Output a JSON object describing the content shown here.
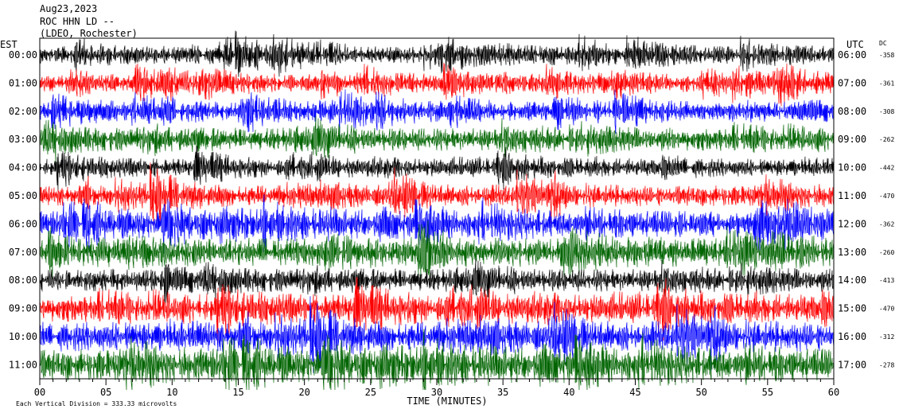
{
  "header": {
    "date": "Aug23,2023",
    "station": "ROC HHN LD --",
    "network": "(LDEO, Rochester)"
  },
  "chart_data": {
    "type": "line",
    "title": "",
    "xlabel": "TIME (MINUTES)",
    "ylabel_left": "EST",
    "ylabel_right": "UTC",
    "dc_label": "DC",
    "x_ticks": [
      "00",
      "05",
      "10",
      "15",
      "20",
      "25",
      "30",
      "35",
      "40",
      "45",
      "50",
      "55",
      "60"
    ],
    "xlim": [
      0,
      60
    ],
    "scale_note": "Each Vertical Division = 333.33 microvolts",
    "trace_colors": [
      "#000000",
      "#ff0000",
      "#0000ff",
      "#006400"
    ],
    "rows": [
      {
        "est": "00:00",
        "utc": "06:00",
        "dc": "-358",
        "amp": 0.35,
        "burst": 0.9
      },
      {
        "est": "01:00",
        "utc": "07:00",
        "dc": "-361",
        "amp": 0.35,
        "burst": 0.9
      },
      {
        "est": "02:00",
        "utc": "08:00",
        "dc": "-308",
        "amp": 0.4,
        "burst": 0.8
      },
      {
        "est": "03:00",
        "utc": "09:00",
        "dc": "-262",
        "amp": 0.6,
        "burst": 0.7
      },
      {
        "est": "04:00",
        "utc": "10:00",
        "dc": "-442",
        "amp": 0.35,
        "burst": 0.8
      },
      {
        "est": "05:00",
        "utc": "11:00",
        "dc": "-470",
        "amp": 0.5,
        "burst": 0.9
      },
      {
        "est": "06:00",
        "utc": "12:00",
        "dc": "-362",
        "amp": 0.75,
        "burst": 0.7
      },
      {
        "est": "07:00",
        "utc": "13:00",
        "dc": "-260",
        "amp": 0.9,
        "burst": 0.7
      },
      {
        "est": "08:00",
        "utc": "14:00",
        "dc": "-413",
        "amp": 0.6,
        "burst": 0.6
      },
      {
        "est": "09:00",
        "utc": "15:00",
        "dc": "-470",
        "amp": 0.8,
        "burst": 0.7
      },
      {
        "est": "10:00",
        "utc": "16:00",
        "dc": "-312",
        "amp": 0.9,
        "burst": 0.7
      },
      {
        "est": "11:00",
        "utc": "17:00",
        "dc": "-278",
        "amp": 1.0,
        "burst": 0.7
      }
    ]
  }
}
